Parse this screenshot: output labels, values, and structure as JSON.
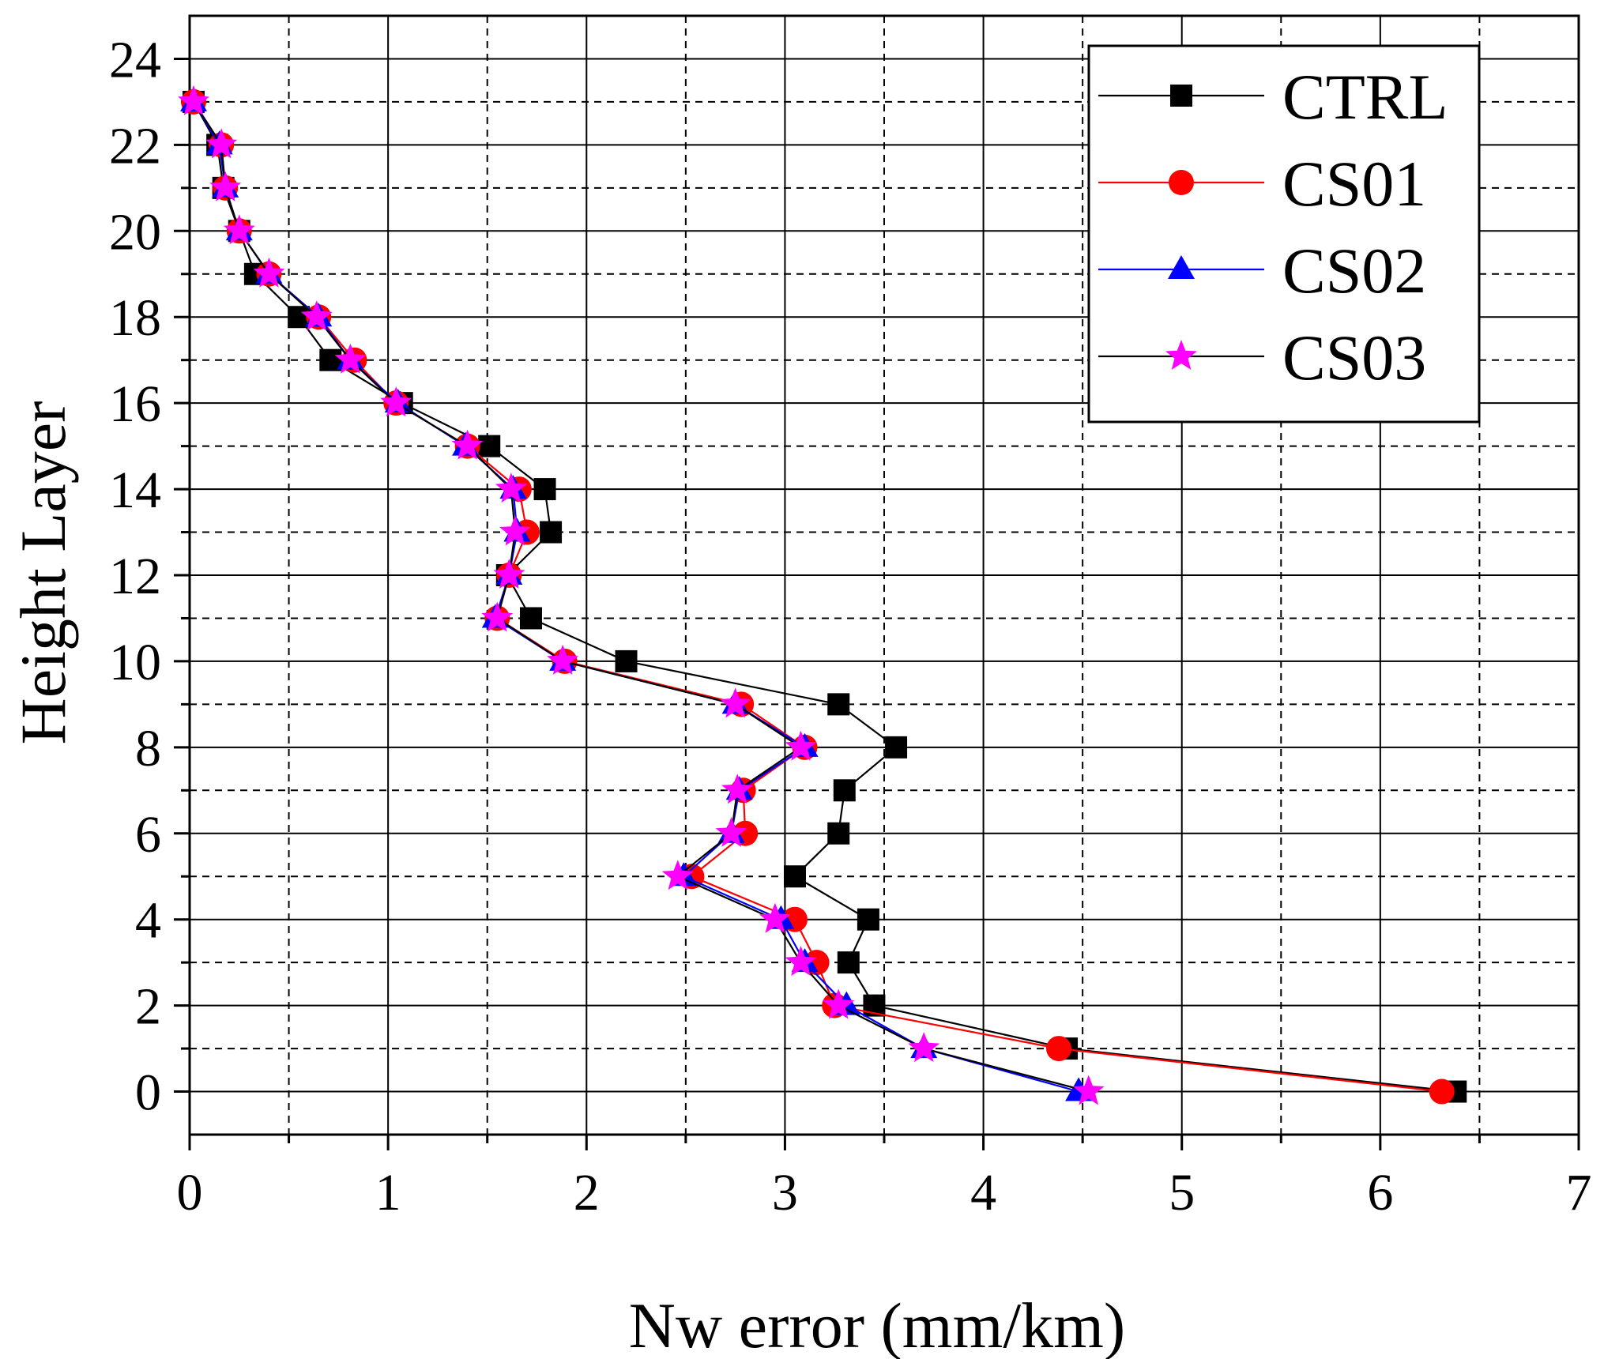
{
  "chart_data": {
    "type": "line",
    "title": "",
    "xlabel": "Nw error (mm/km)",
    "ylabel": "Height Layer",
    "xlim": [
      0,
      7
    ],
    "ylim": [
      -1,
      25
    ],
    "xticks": [
      "0",
      "1",
      "2",
      "3",
      "4",
      "5",
      "6",
      "7"
    ],
    "yticks": [
      "0",
      "2",
      "4",
      "6",
      "8",
      "10",
      "12",
      "14",
      "16",
      "18",
      "20",
      "22",
      "24"
    ],
    "grid": true,
    "legend_position": "top-right",
    "y": [
      0,
      1,
      2,
      3,
      4,
      5,
      6,
      7,
      8,
      9,
      10,
      11,
      12,
      13,
      14,
      15,
      16,
      17,
      18,
      19,
      20,
      21,
      22,
      23
    ],
    "series": [
      {
        "name": "CTRL",
        "color": "#000000",
        "line_color": "#000000",
        "marker": "square",
        "values": [
          6.38,
          4.42,
          3.45,
          3.32,
          3.42,
          3.05,
          3.27,
          3.3,
          3.56,
          3.27,
          2.2,
          1.72,
          1.6,
          1.82,
          1.79,
          1.51,
          1.07,
          0.71,
          0.55,
          0.33,
          0.25,
          0.17,
          0.14,
          0.02
        ]
      },
      {
        "name": "CS01",
        "color": "#ff0000",
        "line_color": "#ff0000",
        "marker": "circle",
        "values": [
          6.31,
          4.38,
          3.25,
          3.16,
          3.05,
          2.53,
          2.8,
          2.79,
          3.1,
          2.78,
          1.89,
          1.55,
          1.61,
          1.7,
          1.66,
          1.4,
          1.04,
          0.83,
          0.65,
          0.4,
          0.25,
          0.18,
          0.16,
          0.02
        ]
      },
      {
        "name": "CS02",
        "color": "#0000ff",
        "line_color": "#0000ff",
        "marker": "triangle",
        "values": [
          4.48,
          3.7,
          3.31,
          3.1,
          2.98,
          2.49,
          2.73,
          2.77,
          3.1,
          2.75,
          1.88,
          1.54,
          1.61,
          1.65,
          1.63,
          1.39,
          1.05,
          0.81,
          0.65,
          0.4,
          0.25,
          0.18,
          0.15,
          0.02
        ]
      },
      {
        "name": "CS03",
        "color": "#ff00ff",
        "line_color": "#000000",
        "marker": "star",
        "values": [
          4.53,
          3.7,
          3.27,
          3.08,
          2.95,
          2.46,
          2.73,
          2.76,
          3.08,
          2.75,
          1.88,
          1.55,
          1.61,
          1.64,
          1.62,
          1.4,
          1.04,
          0.81,
          0.64,
          0.4,
          0.25,
          0.18,
          0.16,
          0.02
        ]
      }
    ]
  }
}
